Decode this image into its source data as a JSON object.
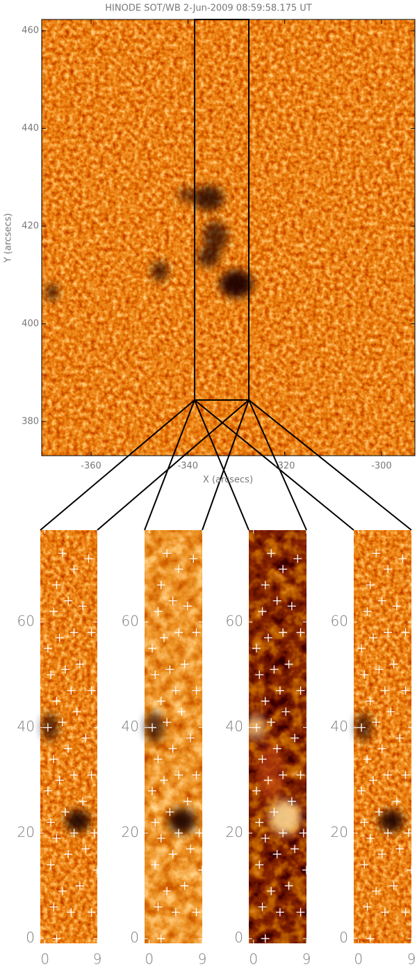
{
  "chart_data": [
    {
      "type": "image",
      "title": "HINODE SOT/WB  2-Jun-2009 08:59:58.175 UT",
      "xlabel": "X (arcsecs)",
      "ylabel": "Y (arcsecs)",
      "xlim": [
        -370.2,
        -293.1
      ],
      "ylim": [
        373.0,
        462.3
      ],
      "xticks": [
        -360,
        -340,
        -320,
        -300
      ],
      "yticks": [
        380,
        400,
        420,
        440,
        460
      ]
    },
    {
      "type": "scatter",
      "xlim": [
        -0.8,
        9
      ],
      "ylim": [
        -0.9,
        77.4
      ],
      "xticks": [
        0,
        9
      ],
      "yticks": [
        0,
        20,
        40,
        60
      ],
      "x": [
        2,
        4.5,
        8,
        1.5,
        3,
        6,
        9,
        1,
        4,
        7,
        2,
        5,
        8.5,
        1,
        3.5,
        6.5,
        0.5,
        2.5,
        5,
        8,
        1.5,
        4,
        7,
        0.5,
        3,
        5.5,
        2,
        4.5,
        8,
        1,
        3.5,
        6,
        0.5,
        2.5,
        5,
        8,
        1.5,
        4,
        6.5,
        2,
        5,
        7.5,
        3
      ],
      "y": [
        0,
        5,
        5,
        6,
        9,
        10,
        13,
        14,
        16,
        17,
        19,
        20,
        20,
        22,
        24,
        26,
        28,
        30,
        31,
        31,
        34,
        36,
        38,
        40,
        41,
        43,
        45,
        47,
        47,
        50,
        51,
        52,
        55,
        57,
        58,
        58,
        62,
        64,
        63,
        67,
        70,
        72,
        73
      ]
    },
    {
      "type": "scatter",
      "xlim": [
        -0.8,
        9
      ],
      "ylim": [
        -0.9,
        77.4
      ],
      "xticks": [
        0,
        9
      ],
      "yticks": [
        0,
        20,
        40,
        60
      ],
      "x": [
        2,
        4.5,
        8,
        1.5,
        3,
        6,
        9,
        1,
        4,
        7,
        2,
        5,
        8.5,
        1,
        3.5,
        6.5,
        0.5,
        2.5,
        5,
        8,
        1.5,
        4,
        7,
        0.5,
        3,
        5.5,
        2,
        4.5,
        8,
        1,
        3.5,
        6,
        0.5,
        2.5,
        5,
        8,
        1.5,
        4,
        6.5,
        2,
        5,
        7.5,
        3
      ],
      "y": [
        0,
        5,
        5,
        6,
        9,
        10,
        13,
        14,
        16,
        17,
        19,
        20,
        20,
        22,
        24,
        26,
        28,
        30,
        31,
        31,
        34,
        36,
        38,
        40,
        41,
        43,
        45,
        47,
        47,
        50,
        51,
        52,
        55,
        57,
        58,
        58,
        62,
        64,
        63,
        67,
        70,
        72,
        73
      ]
    },
    {
      "type": "scatter",
      "xlim": [
        -0.8,
        9
      ],
      "ylim": [
        -0.9,
        77.4
      ],
      "xticks": [
        0,
        9
      ],
      "yticks": [
        0,
        20,
        40,
        60
      ],
      "x": [
        2,
        4.5,
        8,
        1.5,
        3,
        6,
        9,
        1,
        4,
        7,
        2,
        5,
        8.5,
        1,
        3.5,
        6.5,
        0.5,
        2.5,
        5,
        8,
        1.5,
        4,
        7,
        0.5,
        3,
        5.5,
        2,
        4.5,
        8,
        1,
        3.5,
        6,
        0.5,
        2.5,
        5,
        8,
        1.5,
        4,
        6.5,
        2,
        5,
        7.5,
        3
      ],
      "y": [
        0,
        5,
        5,
        6,
        9,
        10,
        13,
        14,
        16,
        17,
        19,
        20,
        20,
        22,
        24,
        26,
        28,
        30,
        31,
        31,
        34,
        36,
        38,
        40,
        41,
        43,
        45,
        47,
        47,
        50,
        51,
        52,
        55,
        57,
        58,
        58,
        62,
        64,
        63,
        67,
        70,
        72,
        73
      ]
    },
    {
      "type": "scatter",
      "xlim": [
        -0.8,
        9
      ],
      "ylim": [
        -0.9,
        77.4
      ],
      "xticks": [
        0,
        9
      ],
      "yticks": [
        0,
        20,
        40,
        60
      ],
      "x": [
        2,
        4.5,
        8,
        1.5,
        3,
        6,
        9,
        1,
        4,
        7,
        2,
        5,
        8.5,
        1,
        3.5,
        6.5,
        0.5,
        2.5,
        5,
        8,
        1.5,
        4,
        7,
        0.5,
        3,
        5.5,
        2,
        4.5,
        8,
        1,
        3.5,
        6,
        0.5,
        2.5,
        5,
        8,
        1.5,
        4,
        6.5,
        2,
        5,
        7.5,
        3
      ],
      "y": [
        0,
        5,
        5,
        6,
        9,
        10,
        13,
        14,
        16,
        17,
        19,
        20,
        20,
        22,
        24,
        26,
        28,
        30,
        31,
        31,
        34,
        36,
        38,
        40,
        41,
        43,
        45,
        47,
        47,
        50,
        51,
        52,
        55,
        57,
        58,
        58,
        62,
        64,
        63,
        67,
        70,
        72,
        73
      ]
    }
  ]
}
